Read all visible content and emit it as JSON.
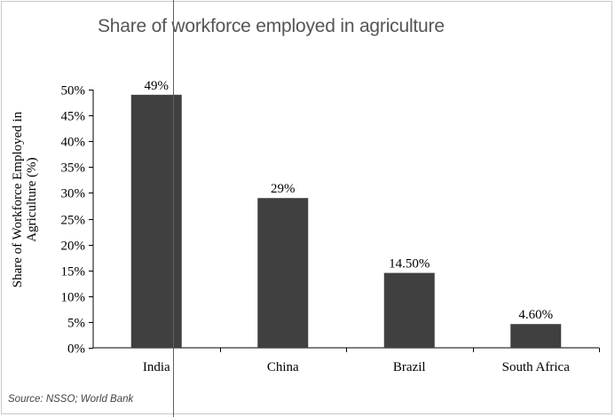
{
  "chart_data": {
    "type": "bar",
    "title": "Share of workforce employed in agriculture",
    "ylabel_lines": [
      "Share of Workforce Employed in",
      "Agriculture (%)"
    ],
    "xlabel": "",
    "categories": [
      "India",
      "China",
      "Brazil",
      "South Africa"
    ],
    "values": [
      49,
      29,
      14.5,
      4.6
    ],
    "data_labels": [
      "49%",
      "29%",
      "14.50%",
      "4.60%"
    ],
    "yticks": [
      "0%",
      "5%",
      "10%",
      "15%",
      "20%",
      "25%",
      "30%",
      "35%",
      "40%",
      "45%",
      "50%"
    ],
    "ylim": [
      0,
      50
    ],
    "grid": false,
    "legend": "none",
    "bar_color": "#404040"
  },
  "source_text": "Source: NSSO; World Bank"
}
